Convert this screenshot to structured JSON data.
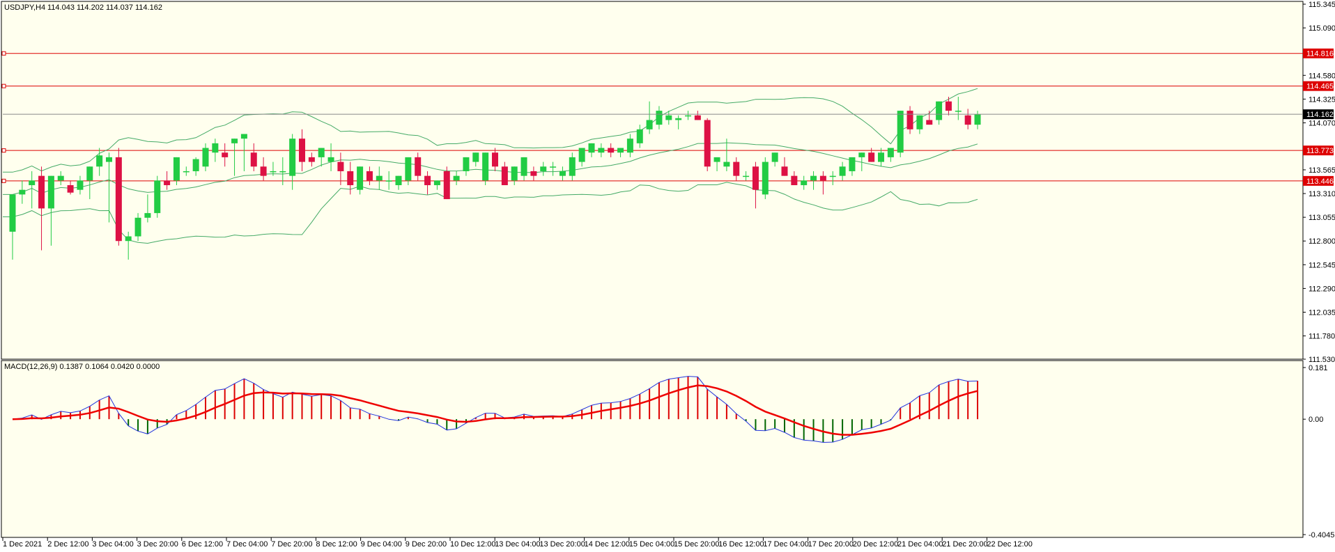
{
  "chart_data": [
    {
      "type": "candlestick",
      "symbol_header": "USDJPY,H4",
      "ohlc_header": "114.043 114.202 114.037 114.162",
      "colors": {
        "background": "#ffffee",
        "bull": "#22cc44",
        "bear": "#dd1144",
        "bands": "#44aa66",
        "level": "#dd0000",
        "grid_current": "#888888",
        "price_tag_bg": "#000000"
      },
      "ylim": [
        111.53,
        115.345
      ],
      "y_ticks": [
        "115.345",
        "115.090",
        "114.580",
        "114.325",
        "114.070",
        "113.565",
        "113.310",
        "113.055",
        "112.800",
        "112.545",
        "112.290",
        "112.035",
        "111.780",
        "111.530"
      ],
      "horizontal_levels": [
        {
          "value": 114.816,
          "label": "114.816"
        },
        {
          "value": 114.465,
          "label": "114.465"
        },
        {
          "value": 113.773,
          "label": "113.773"
        },
        {
          "value": 113.446,
          "label": "113.446"
        }
      ],
      "current_price": {
        "value": 114.162,
        "label": "114.162"
      },
      "candles": [
        [
          112.9,
          113.3,
          112.6,
          113.3
        ],
        [
          113.3,
          113.45,
          113.2,
          113.35
        ],
        [
          113.4,
          113.55,
          113.15,
          113.45
        ],
        [
          113.5,
          113.6,
          112.7,
          113.15
        ],
        [
          113.15,
          113.5,
          112.75,
          113.5
        ],
        [
          113.45,
          113.55,
          113.4,
          113.5
        ],
        [
          113.4,
          113.45,
          113.3,
          113.32
        ],
        [
          113.35,
          113.5,
          113.3,
          113.45
        ],
        [
          113.45,
          113.6,
          113.25,
          113.6
        ],
        [
          113.6,
          113.8,
          113.5,
          113.72
        ],
        [
          113.65,
          113.75,
          113.0,
          113.7
        ],
        [
          113.7,
          113.8,
          112.75,
          112.8
        ],
        [
          112.8,
          112.9,
          112.6,
          112.85
        ],
        [
          112.85,
          113.1,
          112.8,
          113.05
        ],
        [
          113.05,
          113.3,
          113.0,
          113.1
        ],
        [
          113.1,
          113.5,
          113.05,
          113.45
        ],
        [
          113.45,
          113.55,
          113.35,
          113.4
        ],
        [
          113.45,
          113.7,
          113.4,
          113.7
        ],
        [
          113.55,
          113.6,
          113.5,
          113.55
        ],
        [
          113.55,
          113.7,
          113.5,
          113.68
        ],
        [
          113.6,
          113.85,
          113.55,
          113.8
        ],
        [
          113.75,
          113.9,
          113.65,
          113.85
        ],
        [
          113.75,
          113.85,
          113.6,
          113.7
        ],
        [
          113.85,
          113.9,
          113.5,
          113.9
        ],
        [
          113.9,
          113.95,
          113.55,
          113.95
        ],
        [
          113.75,
          113.85,
          113.55,
          113.6
        ],
        [
          113.6,
          113.7,
          113.45,
          113.5
        ],
        [
          113.55,
          113.65,
          113.5,
          113.55
        ],
        [
          113.55,
          113.7,
          113.4,
          113.55
        ],
        [
          113.5,
          113.95,
          113.35,
          113.9
        ],
        [
          113.9,
          114.0,
          113.55,
          113.65
        ],
        [
          113.7,
          113.75,
          113.6,
          113.65
        ],
        [
          113.7,
          113.8,
          113.6,
          113.8
        ],
        [
          113.65,
          113.85,
          113.55,
          113.7
        ],
        [
          113.65,
          113.75,
          113.4,
          113.55
        ],
        [
          113.55,
          113.65,
          113.3,
          113.4
        ],
        [
          113.35,
          113.6,
          113.3,
          113.6
        ],
        [
          113.55,
          113.6,
          113.4,
          113.45
        ],
        [
          113.45,
          113.6,
          113.35,
          113.5
        ],
        [
          113.45,
          113.55,
          113.35,
          113.45
        ],
        [
          113.4,
          113.5,
          113.35,
          113.5
        ],
        [
          113.45,
          113.7,
          113.4,
          113.7
        ],
        [
          113.7,
          113.75,
          113.45,
          113.5
        ],
        [
          113.5,
          113.55,
          113.3,
          113.4
        ],
        [
          113.4,
          113.45,
          113.35,
          113.45
        ],
        [
          113.55,
          113.6,
          113.25,
          113.25
        ],
        [
          113.45,
          113.55,
          113.4,
          113.5
        ],
        [
          113.55,
          113.7,
          113.5,
          113.7
        ],
        [
          113.65,
          113.75,
          113.6,
          113.75
        ],
        [
          113.45,
          113.75,
          113.4,
          113.75
        ],
        [
          113.75,
          113.8,
          113.55,
          113.6
        ],
        [
          113.6,
          113.65,
          113.4,
          113.4
        ],
        [
          113.45,
          113.6,
          113.4,
          113.6
        ],
        [
          113.5,
          113.7,
          113.45,
          113.7
        ],
        [
          113.55,
          113.6,
          113.45,
          113.5
        ],
        [
          113.55,
          113.65,
          113.5,
          113.6
        ],
        [
          113.6,
          113.65,
          113.5,
          113.6
        ],
        [
          113.5,
          113.6,
          113.45,
          113.55
        ],
        [
          113.5,
          113.75,
          113.45,
          113.7
        ],
        [
          113.65,
          113.8,
          113.6,
          113.8
        ],
        [
          113.75,
          113.85,
          113.7,
          113.85
        ],
        [
          113.75,
          113.85,
          113.7,
          113.8
        ],
        [
          113.8,
          113.85,
          113.7,
          113.75
        ],
        [
          113.75,
          113.8,
          113.7,
          113.8
        ],
        [
          113.75,
          113.95,
          113.7,
          113.9
        ],
        [
          113.85,
          114.05,
          113.8,
          114.0
        ],
        [
          114.0,
          114.3,
          113.95,
          114.1
        ],
        [
          114.05,
          114.25,
          114.0,
          114.2
        ],
        [
          114.1,
          114.2,
          114.05,
          114.15
        ],
        [
          114.1,
          114.15,
          114.0,
          114.12
        ],
        [
          114.15,
          114.2,
          114.1,
          114.15
        ],
        [
          114.15,
          114.2,
          114.1,
          114.1
        ],
        [
          114.1,
          114.12,
          113.55,
          113.6
        ],
        [
          113.65,
          113.7,
          113.55,
          113.7
        ],
        [
          113.6,
          113.9,
          113.55,
          113.65
        ],
        [
          113.65,
          113.7,
          113.45,
          113.5
        ],
        [
          113.5,
          113.55,
          113.45,
          113.5
        ],
        [
          113.6,
          113.65,
          113.15,
          113.35
        ],
        [
          113.3,
          113.7,
          113.25,
          113.65
        ],
        [
          113.65,
          113.75,
          113.6,
          113.75
        ],
        [
          113.6,
          113.7,
          113.5,
          113.5
        ],
        [
          113.5,
          113.55,
          113.4,
          113.4
        ],
        [
          113.4,
          113.5,
          113.35,
          113.45
        ],
        [
          113.45,
          113.55,
          113.35,
          113.5
        ],
        [
          113.5,
          113.55,
          113.3,
          113.45
        ],
        [
          113.5,
          113.55,
          113.4,
          113.5
        ],
        [
          113.5,
          113.65,
          113.45,
          113.6
        ],
        [
          113.55,
          113.7,
          113.5,
          113.7
        ],
        [
          113.7,
          113.75,
          113.55,
          113.75
        ],
        [
          113.75,
          113.8,
          113.65,
          113.65
        ],
        [
          113.65,
          113.8,
          113.6,
          113.75
        ],
        [
          113.7,
          113.8,
          113.65,
          113.8
        ],
        [
          113.75,
          114.2,
          113.7,
          114.2
        ],
        [
          114.2,
          114.25,
          113.95,
          114.0
        ],
        [
          114.0,
          114.15,
          113.95,
          114.15
        ],
        [
          114.1,
          114.2,
          114.05,
          114.05
        ],
        [
          114.1,
          114.3,
          114.05,
          114.3
        ],
        [
          114.3,
          114.35,
          114.15,
          114.2
        ],
        [
          114.2,
          114.35,
          114.1,
          114.2
        ],
        [
          114.15,
          114.22,
          114.0,
          114.05
        ],
        [
          114.05,
          114.2,
          114.0,
          114.16
        ]
      ],
      "x_labels": [
        "1 Dec 2021",
        "2 Dec 12:00",
        "3 Dec 04:00",
        "3 Dec 20:00",
        "6 Dec 12:00",
        "7 Dec 04:00",
        "7 Dec 20:00",
        "8 Dec 12:00",
        "9 Dec 04:00",
        "9 Dec 20:00",
        "10 Dec 12:00",
        "13 Dec 04:00",
        "13 Dec 20:00",
        "14 Dec 12:00",
        "15 Dec 04:00",
        "15 Dec 20:00",
        "16 Dec 12:00",
        "17 Dec 04:00",
        "17 Dec 20:00",
        "20 Dec 12:00",
        "21 Dec 04:00",
        "21 Dec 20:00",
        "22 Dec 12:00"
      ],
      "grid": false
    },
    {
      "type": "macd",
      "header": "MACD(12,26,9) 0.1387 0.1064 0.0420 0.0000",
      "ylim": [
        -0.4045,
        0.181
      ],
      "y_ticks": [
        "0.181",
        "0.00",
        "-0.4045"
      ],
      "colors": {
        "histogram_pos": "#dd0000",
        "histogram_neg": "#006600",
        "macd_line": "#2233dd",
        "signal_line": "#ee0000"
      }
    }
  ]
}
